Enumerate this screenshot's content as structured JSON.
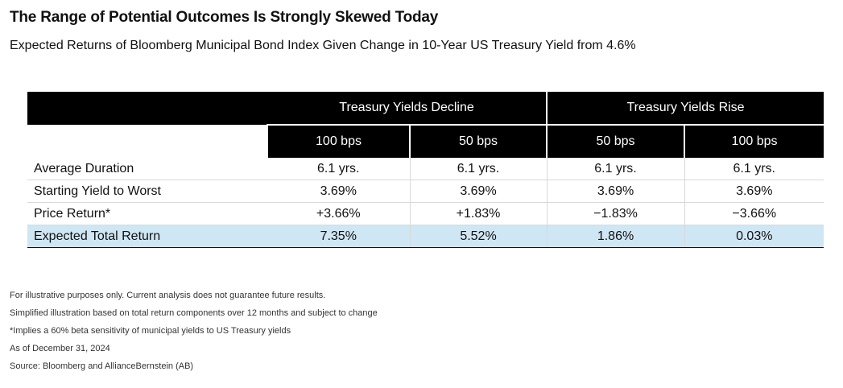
{
  "title": "The Range of Potential Outcomes Is Strongly Skewed Today",
  "subtitle": "Expected Returns of Bloomberg Municipal Bond Index Given Change in 10-Year US Treasury Yield from 4.6%",
  "chart_data": {
    "type": "table",
    "column_groups": [
      "Treasury Yields Decline",
      "Treasury Yields Rise"
    ],
    "columns": [
      "100 bps",
      "50 bps",
      "50 bps",
      "100 bps"
    ],
    "rows": [
      {
        "label": "Average Duration",
        "values": [
          "6.1 yrs.",
          "6.1 yrs.",
          "6.1 yrs.",
          "6.1 yrs."
        ],
        "highlight": false
      },
      {
        "label": "Starting Yield to Worst",
        "values": [
          "3.69%",
          "3.69%",
          "3.69%",
          "3.69%"
        ],
        "highlight": false
      },
      {
        "label": "Price Return*",
        "values": [
          "+3.66%",
          "+1.83%",
          "−1.83%",
          "−3.66%"
        ],
        "highlight": false
      },
      {
        "label": "Expected Total Return",
        "values": [
          "7.35%",
          "5.52%",
          "1.86%",
          "0.03%"
        ],
        "highlight": true
      }
    ],
    "highlight_color": "#cfe6f4"
  },
  "notes": [
    "For illustrative purposes only. Current analysis does not guarantee future results.",
    "Simplified illustration based on total return components over 12 months and subject to change",
    "*Implies a 60% beta sensitivity of municipal yields to US Treasury yields",
    "As of December 31, 2024",
    "Source: Bloomberg and AllianceBernstein (AB)"
  ]
}
